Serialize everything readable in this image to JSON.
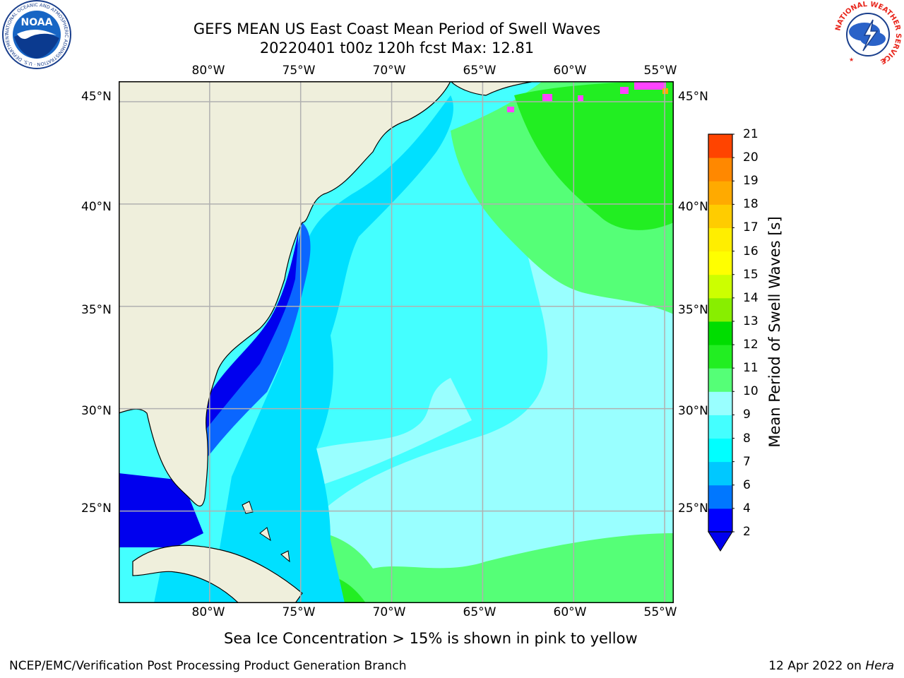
{
  "header": {
    "title_line1": "GEFS MEAN US East Coast Mean Period of Swell Waves",
    "title_line2": "20220401 t00z 120h fcst   Max: 12.81"
  },
  "map": {
    "lon_labels": [
      "80°W",
      "75°W",
      "70°W",
      "65°W",
      "60°W",
      "55°W"
    ],
    "lat_labels": [
      "45°N",
      "40°N",
      "35°N",
      "30°N",
      "25°N"
    ],
    "lon_range": [
      -85,
      -54.5
    ],
    "lat_range": [
      20.5,
      46
    ]
  },
  "colorbar": {
    "title": "Mean Period of Swell Waves [s]",
    "levels": [
      "2",
      "4",
      "6",
      "7",
      "8",
      "9",
      "10",
      "11",
      "12",
      "13",
      "14",
      "15",
      "16",
      "17",
      "18",
      "19",
      "20",
      "21"
    ],
    "colors": [
      "#0000ff",
      "#0077ff",
      "#00c8ff",
      "#00ffff",
      "#44ffff",
      "#99ffff",
      "#55ff77",
      "#22ee22",
      "#00dd00",
      "#88ee00",
      "#ccff00",
      "#ffff00",
      "#ffee00",
      "#ffcc00",
      "#ffaa00",
      "#ff8800",
      "#ff4400",
      "#ff0000"
    ]
  },
  "caption": "Sea Ice Concentration > 15% is shown in pink to yellow",
  "footer": {
    "left": "NCEP/EMC/Verification Post Processing Product Generation Branch",
    "date": "12 Apr 2022 on ",
    "machine": "Hera"
  },
  "logos": {
    "noaa_text": "NOAA",
    "noaa_ring": "NATIONAL OCEANIC AND ATMOSPHERIC ADMINISTRATION · U.S. DEPARTMENT OF COMMERCE",
    "nws_ring": "NATIONAL WEATHER SERVICE"
  },
  "palette": {
    "land": "#efefdc",
    "grid": "#b0b0b0",
    "ocean_main": "#44ffff",
    "ocean_light": "#99ffff",
    "ocean_mid": "#00e0ff",
    "ocean_deep": "#0000ee",
    "ocean_blue": "#0a66ff",
    "green_light": "#55ff77",
    "green": "#22ee22",
    "ice_pink": "#ff44ff"
  }
}
